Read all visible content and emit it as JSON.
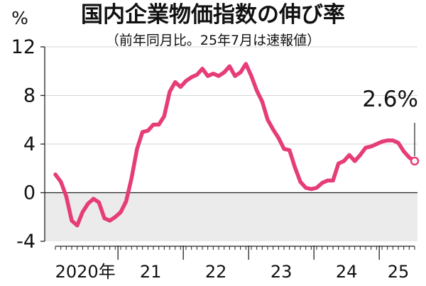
{
  "chart_data": {
    "type": "line",
    "title": "国内企業物価指数の伸び率",
    "subtitle": "（前年同月比。25年7月は速報値）",
    "unit": "%",
    "ylim": [
      -4,
      12
    ],
    "yticks": [
      "12",
      "8",
      "4",
      "0",
      "-4"
    ],
    "ytick_values": [
      12,
      8,
      4,
      0,
      -4
    ],
    "negative_zone_shaded": true,
    "x_year_labels": [
      {
        "label": "2020年",
        "start": 0
      },
      {
        "label": "21",
        "start": 12
      },
      {
        "label": "22",
        "start": 24
      },
      {
        "label": "23",
        "start": 36
      },
      {
        "label": "24",
        "start": 48
      },
      {
        "label": "25",
        "start": 60
      }
    ],
    "months_total": 67,
    "series": [
      {
        "color": "#e63c78",
        "x_start": "2020-01",
        "values": [
          1.5,
          0.9,
          -0.3,
          -2.3,
          -2.7,
          -1.6,
          -0.9,
          -0.5,
          -0.8,
          -2.1,
          -2.3,
          -2.0,
          -1.6,
          -0.7,
          1.2,
          3.6,
          5.0,
          5.1,
          5.6,
          5.6,
          6.3,
          8.3,
          9.1,
          8.7,
          9.2,
          9.5,
          9.7,
          10.2,
          9.6,
          9.8,
          9.6,
          9.9,
          10.4,
          9.6,
          9.9,
          10.6,
          9.6,
          8.4,
          7.5,
          6.0,
          5.2,
          4.5,
          3.6,
          3.5,
          2.1,
          0.9,
          0.4,
          0.3,
          0.4,
          0.8,
          1.0,
          1.0,
          2.4,
          2.6,
          3.1,
          2.6,
          3.1,
          3.7,
          3.8,
          4.0,
          4.2,
          4.3,
          4.3,
          4.1,
          3.4,
          2.9,
          2.6
        ]
      }
    ],
    "annotations": [
      {
        "text": "2.6%",
        "target": "last_point"
      }
    ]
  }
}
